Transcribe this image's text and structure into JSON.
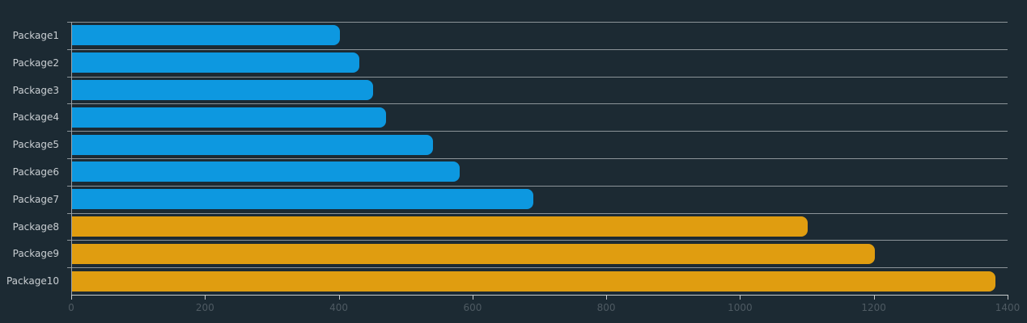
{
  "chart_data": {
    "type": "bar",
    "orientation": "horizontal",
    "title": "",
    "xlabel": "",
    "ylabel": "",
    "legend": "none",
    "grid": "horizontal-split-lines",
    "categories": [
      "Package1",
      "Package2",
      "Package3",
      "Package4",
      "Package5",
      "Package6",
      "Package7",
      "Package8",
      "Package9",
      "Package10"
    ],
    "values": [
      400,
      430,
      450,
      470,
      540,
      580,
      690,
      1100,
      1200,
      1380
    ],
    "bar_colors": [
      "#0d98e0",
      "#0d98e0",
      "#0d98e0",
      "#0d98e0",
      "#0d98e0",
      "#0d98e0",
      "#0d98e0",
      "#e09d10",
      "#e09d10",
      "#e09d10"
    ],
    "xlim": [
      0,
      1400
    ],
    "x_ticks": [
      0,
      200,
      400,
      600,
      800,
      1000,
      1200,
      1400
    ]
  },
  "colors": {
    "background": "#1c2a33",
    "bar_blue": "#0d98e0",
    "bar_orange": "#e09d10",
    "gridline": "#8c9499",
    "axis_x": "#c5cacc",
    "axis_y": "#9aa2a7",
    "tick_label": "#4e5a62",
    "category_label": "#c9ced2"
  }
}
